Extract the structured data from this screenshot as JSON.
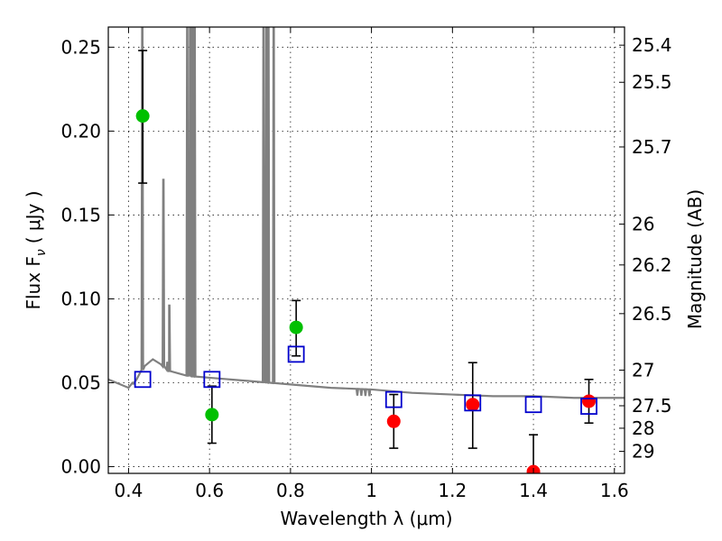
{
  "chart_data": {
    "type": "scatter",
    "xlabel": "Wavelength  λ (μm)",
    "ylabel": "Flux  F",
    "ylabel_sub": "ν",
    "ylabel_unit": "( μJy )",
    "y2label": "Magnitude (AB)",
    "xlim": [
      0.35,
      1.625
    ],
    "ylim": [
      -0.004,
      0.262
    ],
    "grid": true,
    "x_ticks": [
      {
        "value": 0.4,
        "label": "0.4"
      },
      {
        "value": 0.6,
        "label": "0.6"
      },
      {
        "value": 0.8,
        "label": "0.8"
      },
      {
        "value": 1.0,
        "label": "1"
      },
      {
        "value": 1.2,
        "label": "1.2"
      },
      {
        "value": 1.4,
        "label": "1.4"
      },
      {
        "value": 1.6,
        "label": "1.6"
      }
    ],
    "y_ticks": [
      {
        "value": 0.0,
        "label": "0.00"
      },
      {
        "value": 0.05,
        "label": "0.05"
      },
      {
        "value": 0.1,
        "label": "0.10"
      },
      {
        "value": 0.15,
        "label": "0.15"
      },
      {
        "value": 0.2,
        "label": "0.20"
      },
      {
        "value": 0.25,
        "label": "0.25"
      }
    ],
    "y2_ticks": [
      {
        "value": 25.4,
        "label": "25.4"
      },
      {
        "value": 25.5,
        "label": "25.5"
      },
      {
        "value": 25.7,
        "label": "25.7"
      },
      {
        "value": 26,
        "label": "26"
      },
      {
        "value": 26.2,
        "label": "26.2"
      },
      {
        "value": 26.5,
        "label": "26.5"
      },
      {
        "value": 27,
        "label": "27"
      },
      {
        "value": 27.5,
        "label": "27.5"
      },
      {
        "value": 28,
        "label": "28"
      },
      {
        "value": 29,
        "label": "29"
      }
    ],
    "model_spectrum": {
      "color": "#808080",
      "continuum": [
        [
          0.35,
          0.052
        ],
        [
          0.4,
          0.047
        ],
        [
          0.42,
          0.052
        ],
        [
          0.44,
          0.06
        ],
        [
          0.46,
          0.064
        ],
        [
          0.48,
          0.061
        ],
        [
          0.5,
          0.057
        ],
        [
          0.55,
          0.054
        ],
        [
          0.6,
          0.053
        ],
        [
          0.7,
          0.051
        ],
        [
          0.8,
          0.049
        ],
        [
          0.9,
          0.047
        ],
        [
          1.0,
          0.046
        ],
        [
          1.1,
          0.044
        ],
        [
          1.2,
          0.043
        ],
        [
          1.3,
          0.042
        ],
        [
          1.4,
          0.042
        ],
        [
          1.5,
          0.041
        ],
        [
          1.625,
          0.041
        ]
      ],
      "lines": [
        {
          "x": 0.4101,
          "peak": 0.05
        },
        {
          "x": 0.434,
          "peak": 0.262
        },
        {
          "x": 0.4861,
          "peak": 0.171
        },
        {
          "x": 0.4959,
          "peak": 0.062
        },
        {
          "x": 0.5007,
          "peak": 0.096
        },
        {
          "x": 0.545,
          "peak": 0.262
        },
        {
          "x": 0.552,
          "peak": 0.262
        },
        {
          "x": 0.5576,
          "peak": 0.262
        },
        {
          "x": 0.5633,
          "peak": 0.262
        },
        {
          "x": 0.7334,
          "peak": 0.262
        },
        {
          "x": 0.7405,
          "peak": 0.262
        },
        {
          "x": 0.7455,
          "peak": 0.262
        },
        {
          "x": 0.7585,
          "peak": 0.262
        }
      ]
    },
    "series": [
      {
        "marker": "circle",
        "color": "#00c000",
        "points": [
          {
            "x": 0.435,
            "y": 0.209,
            "ylo": 0.169,
            "yhi": 0.248
          },
          {
            "x": 0.606,
            "y": 0.031,
            "ylo": 0.014,
            "yhi": 0.048
          },
          {
            "x": 0.814,
            "y": 0.083,
            "ylo": 0.066,
            "yhi": 0.099
          }
        ]
      },
      {
        "marker": "circle",
        "color": "#ff0000",
        "points": [
          {
            "x": 1.055,
            "y": 0.027,
            "ylo": 0.011,
            "yhi": 0.043
          },
          {
            "x": 1.25,
            "y": 0.037,
            "ylo": 0.011,
            "yhi": 0.062
          },
          {
            "x": 1.4,
            "y": -0.003,
            "ylo": -0.003,
            "yhi": 0.019
          },
          {
            "x": 1.537,
            "y": 0.039,
            "ylo": 0.026,
            "yhi": 0.052
          }
        ]
      },
      {
        "marker": "square",
        "color": "#0000cc",
        "points": [
          {
            "x": 0.435,
            "y": 0.052
          },
          {
            "x": 0.606,
            "y": 0.052
          },
          {
            "x": 0.814,
            "y": 0.067
          },
          {
            "x": 1.055,
            "y": 0.04
          },
          {
            "x": 1.25,
            "y": 0.038
          },
          {
            "x": 1.4,
            "y": 0.037
          },
          {
            "x": 1.537,
            "y": 0.036
          }
        ]
      }
    ]
  }
}
